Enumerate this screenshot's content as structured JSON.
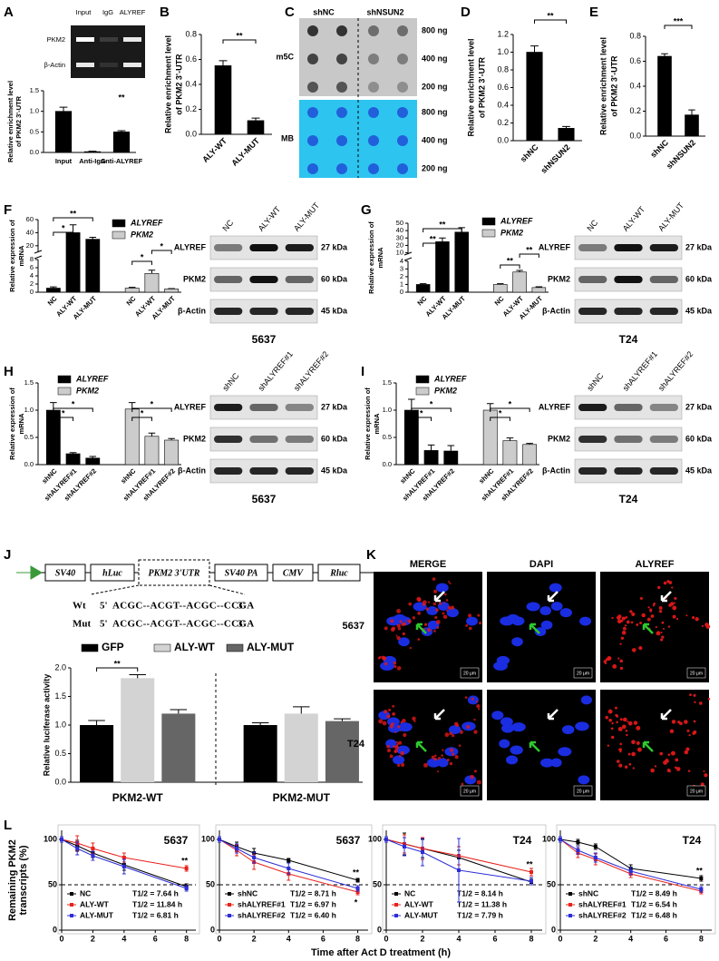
{
  "A": {
    "label": "A",
    "gel": {
      "lanes": [
        "Input",
        "IgG",
        "ALYREF"
      ],
      "rows": [
        "PKM2",
        "β-Actin"
      ]
    },
    "chart": {
      "type": "bar",
      "ylabel": [
        "Relative enrichment level",
        "of PKM2 3'-UTR"
      ],
      "categories": [
        "Input",
        "Anti-IgG",
        "Anti-ALYREF"
      ],
      "series": [
        {
          "color": "#000000",
          "values": [
            1.0,
            0.02,
            0.5
          ],
          "errors": [
            0.1,
            0.01,
            0.03
          ]
        }
      ],
      "ylim": [
        0,
        1.5
      ],
      "yticks": [
        {
          "value": 0,
          "label": "0.0"
        },
        0.5,
        {
          "value": 1,
          "label": "1.0"
        },
        1.5
      ],
      "significance": [
        "**"
      ]
    }
  },
  "B": {
    "label": "B",
    "chart": {
      "type": "bar",
      "ylabel": [
        "Relative enrichment level",
        "of PKM2 3'-UTR"
      ],
      "categories": [
        "ALY-WT",
        "ALY-MUT"
      ],
      "series": [
        {
          "color": "#000000",
          "values": [
            0.55,
            0.11
          ],
          "errors": [
            0.04,
            0.02
          ]
        }
      ],
      "ylim": [
        0,
        0.8
      ],
      "yticks": [
        {
          "value": 0,
          "label": "0.0"
        },
        0.2,
        0.4,
        0.6,
        0.8
      ],
      "significance": [
        "**"
      ]
    }
  },
  "C": {
    "label": "C",
    "groups": [
      "shNC",
      "shNSUN2"
    ],
    "stains": [
      "m5C",
      "MB"
    ],
    "amounts": [
      "800 ng",
      "400 ng",
      "200 ng"
    ]
  },
  "D": {
    "label": "D",
    "chart": {
      "type": "bar",
      "ylabel": [
        "Relative enrichment level",
        "of PKM2 3'-UTR"
      ],
      "categories": [
        "shNC",
        "shNSUN2"
      ],
      "series": [
        {
          "color": "#000000",
          "values": [
            1.0,
            0.14
          ],
          "errors": [
            0.07,
            0.02
          ]
        }
      ],
      "ylim": [
        0,
        1.2
      ],
      "yticks": [
        {
          "value": 0,
          "label": "0.0"
        },
        0.2,
        0.4,
        0.6,
        0.8,
        {
          "value": 1,
          "label": "1.0"
        },
        1.2
      ],
      "significance": [
        "**"
      ]
    }
  },
  "E": {
    "label": "E",
    "chart": {
      "type": "bar",
      "ylabel": [
        "Relative enrichment level",
        "of PKM2 3'-UTR"
      ],
      "categories": [
        "shNC",
        "shNSUN2"
      ],
      "series": [
        {
          "color": "#000000",
          "values": [
            0.64,
            0.17
          ],
          "errors": [
            0.02,
            0.04
          ]
        }
      ],
      "ylim": [
        0,
        0.8
      ],
      "yticks": [
        {
          "value": 0,
          "label": "0.0"
        },
        0.2,
        0.4,
        0.6,
        0.8
      ],
      "significance": [
        "***"
      ]
    }
  },
  "F": {
    "label": "F",
    "chart": {
      "type": "bar",
      "ylabel": [
        "Relative expression of",
        "mRNA"
      ],
      "categories": [
        "NC",
        "ALY-WT",
        "ALY-MUT"
      ],
      "series": [
        {
          "name": "ALYREF",
          "color": "#000000",
          "values": [
            1.0,
            40,
            30
          ],
          "errors": [
            0.3,
            12,
            3
          ]
        },
        {
          "name": "PKM2",
          "color": "#cccccc",
          "values": [
            1.0,
            4.6,
            0.8
          ],
          "errors": [
            0.2,
            0.8,
            0.1
          ]
        }
      ],
      "ylim": [
        0,
        60
      ],
      "axis_break": [
        8,
        10
      ],
      "yticks": [
        0,
        2,
        4,
        6,
        8,
        20,
        40,
        60
      ],
      "significance": [
        "**",
        "*",
        "*",
        "*"
      ]
    },
    "blot": {
      "lanes": [
        "NC",
        "ALY-WT",
        "ALY-MUT"
      ],
      "rows": [
        "ALYREF",
        "PKM2",
        "β-Actin"
      ],
      "sizes": [
        "27 kDa",
        "60 kDa",
        "45 kDa"
      ],
      "cell_line": "5637"
    }
  },
  "G": {
    "label": "G",
    "chart": {
      "type": "bar",
      "ylabel": [
        "Relative expression of",
        "mRNA"
      ],
      "categories": [
        "NC",
        "ALY-WT",
        "ALY-MUT"
      ],
      "series": [
        {
          "name": "ALYREF",
          "color": "#000000",
          "values": [
            1.0,
            25,
            38
          ],
          "errors": [
            0.1,
            5,
            6
          ]
        },
        {
          "name": "PKM2",
          "color": "#cccccc",
          "values": [
            1.0,
            2.6,
            0.6
          ],
          "errors": [
            0.1,
            0.2,
            0.1
          ]
        }
      ],
      "ylim": [
        0,
        50
      ],
      "axis_break": [
        4,
        8
      ],
      "yticks": [
        0,
        1,
        2,
        3,
        4,
        10,
        20,
        30,
        40,
        50
      ],
      "significance": [
        "**",
        "**",
        "**",
        "**"
      ]
    },
    "blot": {
      "lanes": [
        "NC",
        "ALY-WT",
        "ALY-MUT"
      ],
      "rows": [
        "ALYREF",
        "PKM2",
        "β-Actin"
      ],
      "sizes": [
        "27 kDa",
        "60 kDa",
        "45 kDa"
      ],
      "cell_line": "T24"
    }
  },
  "H": {
    "label": "H",
    "chart": {
      "type": "bar",
      "ylabel": [
        "Relative expression of",
        "mRNA"
      ],
      "categories": [
        "shNC",
        "shALYREF#1",
        "shALYREF#2"
      ],
      "series": [
        {
          "name": "ALYREF",
          "color": "#000000",
          "values": [
            1.0,
            0.2,
            0.12
          ],
          "errors": [
            0.14,
            0.02,
            0.03
          ]
        },
        {
          "name": "PKM2",
          "color": "#cccccc",
          "values": [
            1.02,
            0.52,
            0.45
          ],
          "errors": [
            0.12,
            0.06,
            0.03
          ]
        }
      ],
      "ylim": [
        0,
        1.5
      ],
      "yticks": [
        {
          "value": 0,
          "label": "0.0"
        },
        0.5,
        {
          "value": 1,
          "label": "1.0"
        },
        1.5
      ],
      "significance": [
        "*",
        "*",
        "*",
        "*"
      ]
    },
    "blot": {
      "lanes": [
        "shNC",
        "shALYREF#1",
        "shALYREF#2"
      ],
      "rows": [
        "ALYREF",
        "PKM2",
        "β-Actin"
      ],
      "sizes": [
        "27 kDa",
        "60 kDa",
        "45 kDa"
      ],
      "cell_line": "5637"
    }
  },
  "I": {
    "label": "I",
    "chart": {
      "type": "bar",
      "ylabel": [
        "Relative expression of",
        "mRNA"
      ],
      "categories": [
        "shNC",
        "shALYREF#1",
        "shALYREF#2"
      ],
      "series": [
        {
          "name": "ALYREF",
          "color": "#000000",
          "values": [
            1.0,
            0.26,
            0.25
          ],
          "errors": [
            0.2,
            0.1,
            0.1
          ]
        },
        {
          "name": "PKM2",
          "color": "#cccccc",
          "values": [
            1.0,
            0.44,
            0.37
          ],
          "errors": [
            0.12,
            0.05,
            0.02
          ]
        }
      ],
      "ylim": [
        0,
        1.5
      ],
      "yticks": [
        {
          "value": 0,
          "label": "0.0"
        },
        0.5,
        {
          "value": 1,
          "label": "1.0"
        },
        1.5
      ],
      "significance": [
        "*",
        "*",
        "*",
        "*"
      ]
    },
    "blot": {
      "lanes": [
        "shNC",
        "shALYREF#1",
        "shALYREF#2"
      ],
      "rows": [
        "ALYREF",
        "PKM2",
        "β-Actin"
      ],
      "sizes": [
        "27 kDa",
        "60 kDa",
        "45 kDa"
      ],
      "cell_line": "T24"
    }
  },
  "J": {
    "label": "J",
    "construct": [
      "SV40",
      "hLuc",
      "PKM2 3'UTR",
      "SV40 PA",
      "CMV",
      "Rluc"
    ],
    "sequences": [
      {
        "name": "Wt",
        "five": "5'",
        "seq": "ACGC--ACGT--ACGC--CCGA",
        "three": "3'"
      },
      {
        "name": "Mut",
        "five": "5'",
        "seq": "ACGC--ACGT--ACGC--CCGA",
        "three": "3'"
      }
    ],
    "chart": {
      "type": "bar",
      "ylabel": [
        "Relative luciferase activity"
      ],
      "categories": [
        "PKM2-WT",
        "PKM2-MUT"
      ],
      "series": [
        {
          "name": "GFP",
          "color": "#000000",
          "values": [
            1.0,
            1.0
          ],
          "errors": [
            0.08,
            0.04
          ]
        },
        {
          "name": "ALY-WT",
          "color": "#d3d3d3",
          "values": [
            1.82,
            1.2
          ],
          "errors": [
            0.06,
            0.12
          ]
        },
        {
          "name": "ALY-MUT",
          "color": "#666666",
          "values": [
            1.2,
            1.07
          ],
          "errors": [
            0.07,
            0.04
          ]
        }
      ],
      "ylim": [
        0,
        2.0
      ],
      "yticks": [
        {
          "value": 0,
          "label": "0.0"
        },
        0.5,
        {
          "value": 1,
          "label": "1.0"
        },
        1.5,
        {
          "value": 2,
          "label": "2.0"
        }
      ],
      "significance": [
        "**"
      ]
    }
  },
  "K": {
    "label": "K",
    "columns": [
      "MERGE",
      "DAPI",
      "ALYREF"
    ],
    "rows": [
      "5637",
      "T24"
    ],
    "scale_bar": "20 μm"
  },
  "L": {
    "label": "L",
    "ylabel": [
      "Remaining PKM2",
      "transcripts (%)"
    ],
    "xlabel": "Time after Act D treatment (h)",
    "panels": [
      {
        "type": "line",
        "title": "5637",
        "x": [
          0,
          1,
          2,
          4,
          8
        ],
        "xlim": [
          0,
          8.6
        ],
        "xticks": [
          0,
          2,
          4,
          6,
          8
        ],
        "ylim": [
          0,
          110
        ],
        "yticks": [
          0,
          50,
          100
        ],
        "reference_line": 50,
        "series": [
          {
            "name": "NC",
            "half_life": "T1/2 = 7.64 h",
            "color": "#000000",
            "values": [
              100,
              93,
              85,
              72,
              48
            ],
            "errors": [
              3,
              6,
              5,
              6,
              3
            ]
          },
          {
            "name": "ALY-WT",
            "half_life": "T1/2 = 11.84 h",
            "color": "#e8221b",
            "values": [
              100,
              96,
              90,
              80,
              68
            ],
            "errors": [
              3,
              8,
              6,
              5,
              3
            ]
          },
          {
            "name": "ALY-MUT",
            "half_life": "T1/2 = 6.81 h",
            "color": "#2d2dd6",
            "values": [
              100,
              90,
              82,
              70,
              46
            ],
            "errors": [
              3,
              7,
              5,
              8,
              3
            ]
          }
        ],
        "annotations": [
          "**"
        ]
      },
      {
        "type": "line",
        "title": "5637",
        "x": [
          0,
          1,
          2,
          4,
          8
        ],
        "xlim": [
          0,
          8.6
        ],
        "xticks": [
          0,
          2,
          4,
          6,
          8
        ],
        "ylim": [
          0,
          110
        ],
        "yticks": [
          0,
          50,
          100
        ],
        "reference_line": 50,
        "series": [
          {
            "name": "shNC",
            "half_life": "T1/2 = 8.71 h",
            "color": "#000000",
            "values": [
              100,
              92,
              85,
              77,
              55
            ],
            "errors": [
              3,
              5,
              5,
              2,
              2
            ]
          },
          {
            "name": "shALYREF#1",
            "half_life": "T1/2 = 6.97 h",
            "color": "#e8221b",
            "values": [
              100,
              88,
              75,
              62,
              42
            ],
            "errors": [
              3,
              6,
              8,
              7,
              3
            ]
          },
          {
            "name": "shALYREF#2",
            "half_life": "T1/2 = 6.40 h",
            "color": "#2d2dd6",
            "values": [
              100,
              90,
              80,
              68,
              46
            ],
            "errors": [
              3,
              5,
              6,
              6,
              3
            ]
          }
        ],
        "annotations": [
          "**",
          "*"
        ]
      },
      {
        "type": "line",
        "title": "T24",
        "x": [
          0,
          1,
          2,
          4,
          8
        ],
        "xlim": [
          0,
          8.6
        ],
        "xticks": [
          0,
          2,
          4,
          6,
          8
        ],
        "ylim": [
          0,
          110
        ],
        "yticks": [
          0,
          50,
          100
        ],
        "reference_line": 50,
        "series": [
          {
            "name": "NC",
            "half_life": "T1/2 = 8.14 h",
            "color": "#000000",
            "values": [
              100,
              95,
              90,
              80,
              53
            ],
            "errors": [
              3,
              12,
              10,
              8,
              3
            ]
          },
          {
            "name": "ALY-WT",
            "half_life": "T1/2 = 11.38 h",
            "color": "#e8221b",
            "values": [
              100,
              95,
              90,
              82,
              64
            ],
            "errors": [
              3,
              10,
              12,
              10,
              4
            ]
          },
          {
            "name": "ALY-MUT",
            "half_life": "T1/2 = 7.79 h",
            "color": "#2d2dd6",
            "values": [
              100,
              92,
              86,
              66,
              54
            ],
            "errors": [
              3,
              10,
              15,
              35,
              4
            ]
          }
        ],
        "annotations": [
          "**"
        ]
      },
      {
        "type": "line",
        "title": "T24",
        "x": [
          0,
          1,
          2,
          4,
          8
        ],
        "xlim": [
          0,
          8.6
        ],
        "xticks": [
          0,
          2,
          4,
          6,
          8
        ],
        "ylim": [
          0,
          110
        ],
        "yticks": [
          0,
          50,
          100
        ],
        "reference_line": 50,
        "series": [
          {
            "name": "shNC",
            "half_life": "T1/2 = 8.49 h",
            "color": "#000000",
            "values": [
              100,
              97,
              92,
              68,
              57
            ],
            "errors": [
              3,
              3,
              3,
              4,
              3
            ]
          },
          {
            "name": "shALYREF#1",
            "half_life": "T1/2 = 6.54 h",
            "color": "#e8221b",
            "values": [
              100,
              85,
              78,
              62,
              43
            ],
            "errors": [
              3,
              5,
              6,
              4,
              3
            ]
          },
          {
            "name": "shALYREF#2",
            "half_life": "T1/2 = 6.48 h",
            "color": "#2d2dd6",
            "values": [
              100,
              88,
              80,
              65,
              45
            ],
            "errors": [
              3,
              4,
              5,
              4,
              3
            ]
          }
        ],
        "annotations": [
          "**"
        ]
      }
    ]
  }
}
